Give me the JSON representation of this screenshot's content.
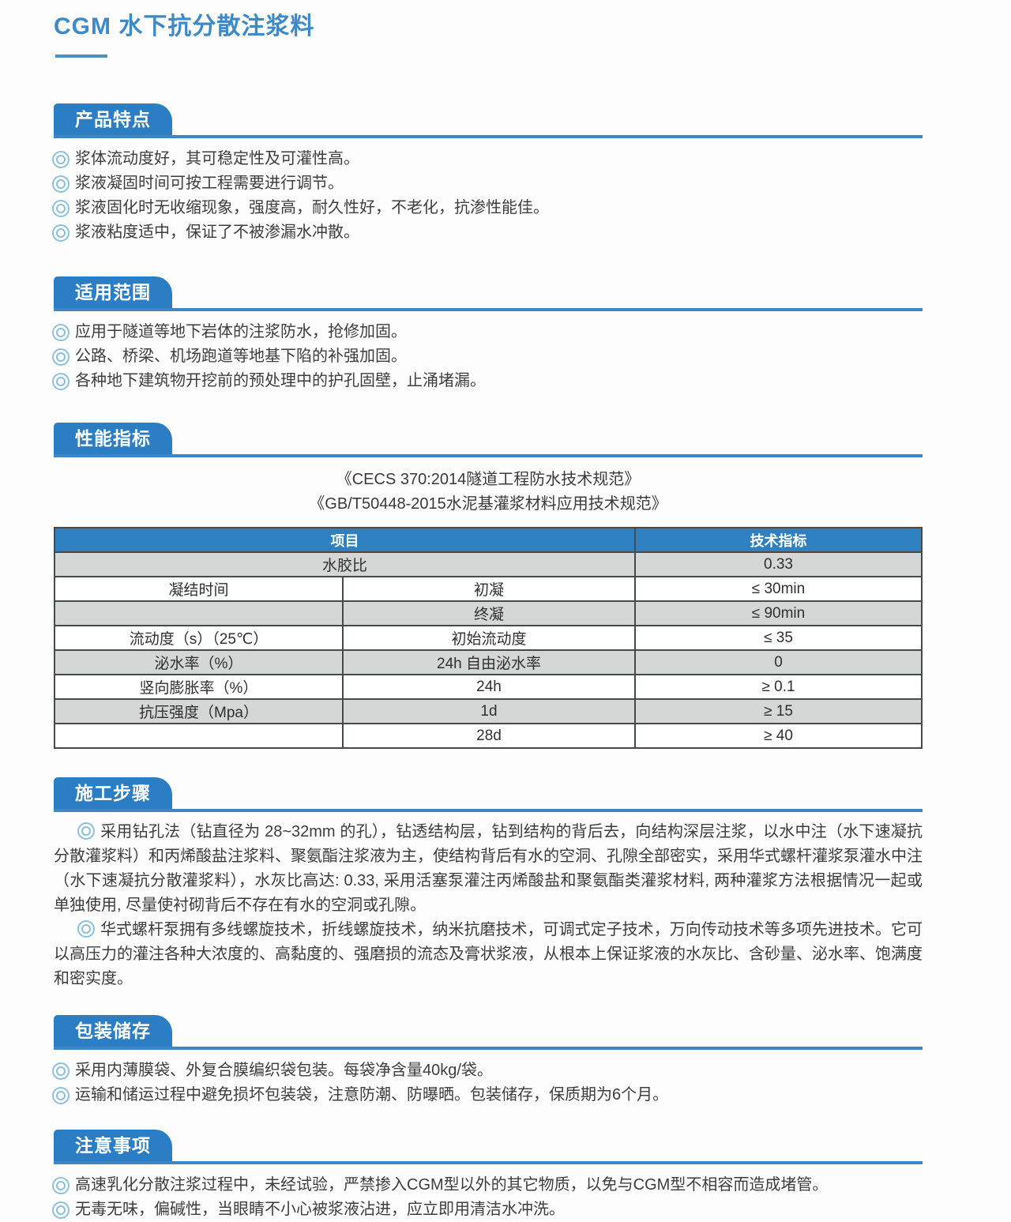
{
  "page": {
    "title": "CGM 水下抗分散注浆料"
  },
  "colors": {
    "accent_blue": "#2b7ec4",
    "title_blue": "#3e89c8",
    "rule_blue": "#3e86c5",
    "table_header_bg": "#2e80c1",
    "table_gray_row": "#d5d6d6",
    "bullet_ring": "#8ac2de",
    "body_text": "#3d3d3d"
  },
  "icons": {
    "bullet": "double-circle ◎"
  },
  "sections": {
    "features": {
      "heading": "产品特点",
      "items": [
        "浆体流动度好，其可稳定性及可灌性高。",
        "浆液凝固时间可按工程需要进行调节。",
        "浆液固化时无收缩现象，强度高，耐久性好，不老化，抗渗性能佳。",
        "浆液粘度适中，保证了不被渗漏水冲散。"
      ]
    },
    "scope": {
      "heading": "适用范围",
      "items": [
        "应用于隧道等地下岩体的注浆防水，抢修加固。",
        "公路、桥梁、机场跑道等地基下陷的补强加固。",
        "各种地下建筑物开挖前的预处理中的护孔固壁，止涌堵漏。"
      ]
    },
    "performance": {
      "heading": "性能指标",
      "standards": [
        "《CECS 370:2014隧道工程防水技术规范》",
        "《GB/T50448-2015水泥基灌浆材料应用技术规范》"
      ],
      "table": {
        "headers": [
          "项目",
          "技术指标"
        ],
        "rows": [
          {
            "item": "水胶比",
            "sub": "",
            "value": "0.33"
          },
          {
            "item": "凝结时间",
            "sub": "初凝",
            "value": "≤ 30min"
          },
          {
            "item": "",
            "sub": "终凝",
            "value": "≤ 90min"
          },
          {
            "item": "流动度（s）（25℃）",
            "sub": "初始流动度",
            "value": "≤ 35"
          },
          {
            "item": "泌水率（%）",
            "sub": "24h 自由泌水率",
            "value": "0"
          },
          {
            "item": "竖向膨胀率（%）",
            "sub": "24h",
            "value": "≥ 0.1"
          },
          {
            "item": "抗压强度（Mpa）",
            "sub": "1d",
            "value": "≥ 15"
          },
          {
            "item": "",
            "sub": "28d",
            "value": "≥ 40"
          }
        ]
      }
    },
    "construction": {
      "heading": "施工步骤",
      "paragraphs": [
        "采用钻孔法（钻直径为 28~32mm 的孔），钻透结构层，钻到结构的背后去，向结构深层注浆，以水中注（水下速凝抗分散灌浆料）和丙烯酸盐注浆料、聚氨酯注浆液为主，使结构背后有水的空洞、孔隙全部密实，采用华式螺杆灌浆泵灌水中注（水下速凝抗分散灌浆料），水灰比高达: 0.33, 采用活塞泵灌注丙烯酸盐和聚氨酯类灌浆材料, 两种灌浆方法根据情况一起或单独使用, 尽量使衬砌背后不存在有水的空洞或孔隙。",
        "华式螺杆泵拥有多线螺旋技术，折线螺旋技术，纳米抗磨技术，可调式定子技术，万向传动技术等多项先进技术。它可以高压力的灌注各种大浓度的、高黏度的、强磨损的流态及膏状浆液，从根本上保证浆液的水灰比、含砂量、泌水率、饱满度和密实度。"
      ]
    },
    "packaging": {
      "heading": "包装储存",
      "items": [
        "采用内薄膜袋、外复合膜编织袋包装。每袋净含量40kg/袋。",
        "运输和储运过程中避免损坏包装袋，注意防潮、防曝晒。包装储存，保质期为6个月。"
      ]
    },
    "notes": {
      "heading": "注意事项",
      "items": [
        "高速乳化分散注浆过程中，未经试验，严禁掺入CGM型以外的其它物质，以免与CGM型不相容而造成堵管。",
        "无毒无味，偏碱性，当眼睛不小心被浆液沾进，应立即用清洁水冲洗。"
      ]
    }
  }
}
